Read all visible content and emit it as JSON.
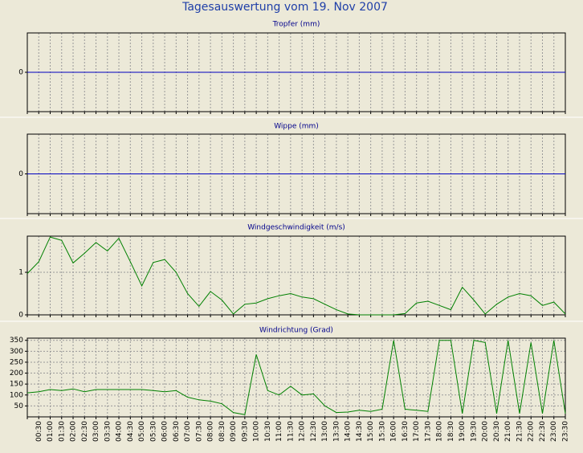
{
  "title": "Tagesauswertung vom 19. Nov 2007",
  "chart_data": [
    {
      "type": "line",
      "title": "Tropfer (mm)",
      "color": "#0000c0",
      "ylim": [
        -1,
        1
      ],
      "yticks": [
        0
      ],
      "grid": true,
      "values": [
        0,
        0,
        0,
        0,
        0,
        0,
        0,
        0,
        0,
        0,
        0,
        0,
        0,
        0,
        0,
        0,
        0,
        0,
        0,
        0,
        0,
        0,
        0,
        0,
        0,
        0,
        0,
        0,
        0,
        0,
        0,
        0,
        0,
        0,
        0,
        0,
        0,
        0,
        0,
        0,
        0,
        0,
        0,
        0,
        0,
        0,
        0,
        0
      ]
    },
    {
      "type": "line",
      "title": "Wippe (mm)",
      "color": "#0000c0",
      "ylim": [
        -1,
        1
      ],
      "yticks": [
        0
      ],
      "grid": true,
      "values": [
        0,
        0,
        0,
        0,
        0,
        0,
        0,
        0,
        0,
        0,
        0,
        0,
        0,
        0,
        0,
        0,
        0,
        0,
        0,
        0,
        0,
        0,
        0,
        0,
        0,
        0,
        0,
        0,
        0,
        0,
        0,
        0,
        0,
        0,
        0,
        0,
        0,
        0,
        0,
        0,
        0,
        0,
        0,
        0,
        0,
        0,
        0,
        0
      ]
    },
    {
      "type": "line",
      "title": "Windgeschwindigkeit (m/s)",
      "color": "#008000",
      "ylim": [
        0,
        1.85
      ],
      "yticks": [
        0,
        1
      ],
      "grid": true,
      "values": [
        0.97,
        1.25,
        1.83,
        1.75,
        1.22,
        1.45,
        1.7,
        1.5,
        1.8,
        1.25,
        0.68,
        1.23,
        1.3,
        1.0,
        0.5,
        0.2,
        0.55,
        0.35,
        0.02,
        0.25,
        0.28,
        0.38,
        0.45,
        0.5,
        0.42,
        0.38,
        0.25,
        0.12,
        0.02,
        0,
        0,
        0,
        0,
        0.03,
        0.28,
        0.32,
        0.22,
        0.12,
        0.65,
        0.35,
        0.02,
        0.25,
        0.42,
        0.5,
        0.45,
        0.22,
        0.3,
        0.02
      ]
    },
    {
      "type": "line",
      "title": "Windrichtung (Grad)",
      "color": "#008000",
      "ylim": [
        0,
        360
      ],
      "yticks": [
        50,
        100,
        150,
        200,
        250,
        300,
        350
      ],
      "grid": true,
      "categories": [
        null,
        "00:30",
        "01:00",
        "01:30",
        "02:00",
        "02:30",
        "03:00",
        "03:30",
        "04:00",
        "04:30",
        "05:00",
        "05:30",
        "06:00",
        "06:30",
        "07:00",
        "07:30",
        "08:00",
        "08:30",
        "09:00",
        "09:30",
        "10:00",
        "10:30",
        "11:00",
        "11:30",
        "12:00",
        "12:30",
        "13:00",
        "13:30",
        "14:00",
        "14:30",
        "15:00",
        "15:30",
        "16:00",
        "16:30",
        "17:00",
        "17:30",
        "18:00",
        "18:30",
        "19:00",
        "19:30",
        "20:00",
        "20:30",
        "21:00",
        "21:30",
        "22:00",
        "22:30",
        "23:00",
        "23:30"
      ],
      "values": [
        110,
        115,
        125,
        120,
        128,
        115,
        125,
        125,
        125,
        125,
        125,
        120,
        115,
        120,
        90,
        78,
        72,
        60,
        20,
        10,
        285,
        120,
        100,
        140,
        100,
        105,
        50,
        20,
        22,
        30,
        25,
        35,
        350,
        35,
        30,
        25,
        350,
        350,
        15,
        350,
        340,
        15,
        350,
        15,
        340,
        15,
        350,
        15
      ]
    }
  ]
}
